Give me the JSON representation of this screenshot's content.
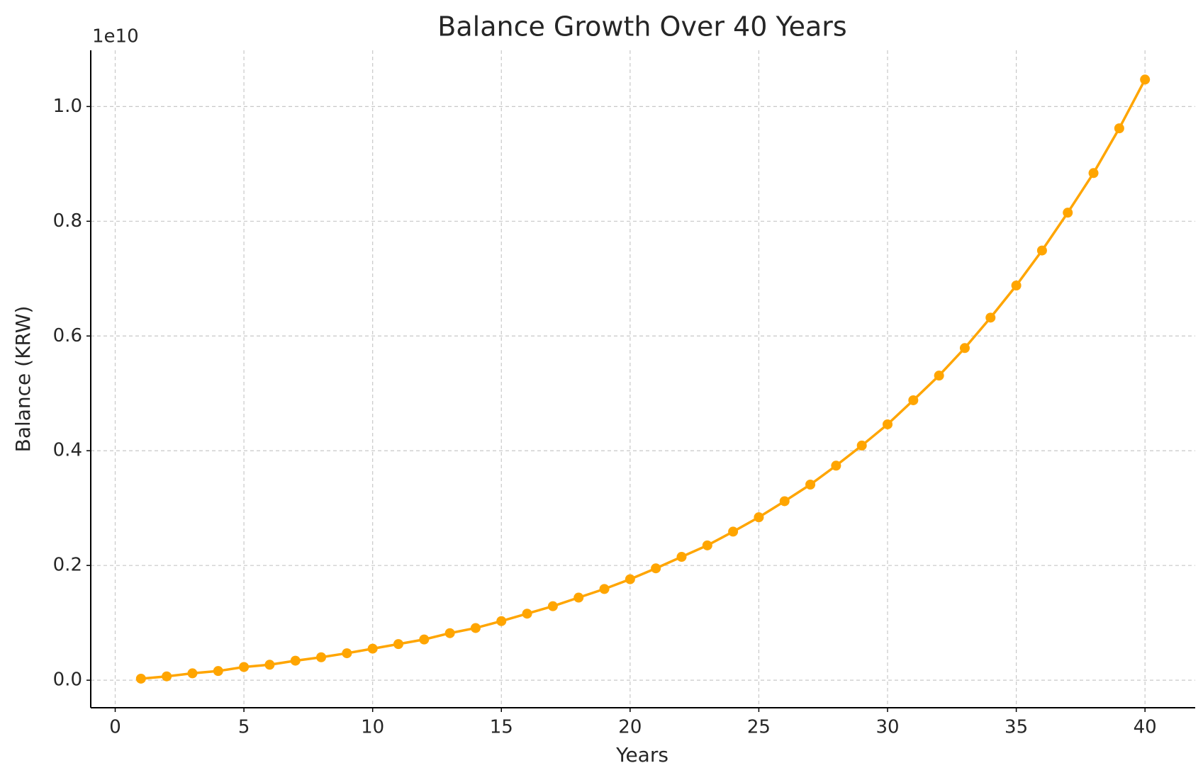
{
  "chart_data": {
    "type": "line",
    "title": "Balance Growth Over 40 Years",
    "x_label": "Years",
    "y_label": "Balance (KRW)",
    "y_offset_label": "1e10",
    "x": [
      1,
      2,
      3,
      4,
      5,
      6,
      7,
      8,
      9,
      10,
      11,
      12,
      13,
      14,
      15,
      16,
      17,
      18,
      19,
      20,
      21,
      22,
      23,
      24,
      25,
      26,
      27,
      28,
      29,
      30,
      31,
      32,
      33,
      34,
      35,
      36,
      37,
      38,
      39,
      40
    ],
    "series": [
      {
        "name": "Balance",
        "color": "#ffa500",
        "values": [
          27000000,
          67000000,
          120000000,
          160000000,
          230000000,
          270000000,
          340000000,
          400000000,
          470000000,
          550000000,
          630000000,
          710000000,
          820000000,
          910000000,
          1030000000,
          1160000000,
          1290000000,
          1440000000,
          1590000000,
          1760000000,
          1950000000,
          2150000000,
          2350000000,
          2590000000,
          2840000000,
          3120000000,
          3410000000,
          3740000000,
          4090000000,
          4460000000,
          4880000000,
          5310000000,
          5790000000,
          6320000000,
          6880000000,
          7490000000,
          8150000000,
          8840000000,
          9620000000,
          10470000000
        ]
      }
    ],
    "xlim": [
      -0.95,
      41.95
    ],
    "xticks": [
      0,
      5,
      10,
      15,
      20,
      25,
      30,
      35,
      40
    ],
    "ylim": [
      -480000000,
      10980000000
    ],
    "yticks": [
      {
        "value": 0,
        "label": "0.0"
      },
      {
        "value": 2000000000,
        "label": "0.2"
      },
      {
        "value": 4000000000,
        "label": "0.4"
      },
      {
        "value": 6000000000,
        "label": "0.6"
      },
      {
        "value": 8000000000,
        "label": "0.8"
      },
      {
        "value": 10000000000,
        "label": "1.0"
      }
    ],
    "grid": true
  }
}
